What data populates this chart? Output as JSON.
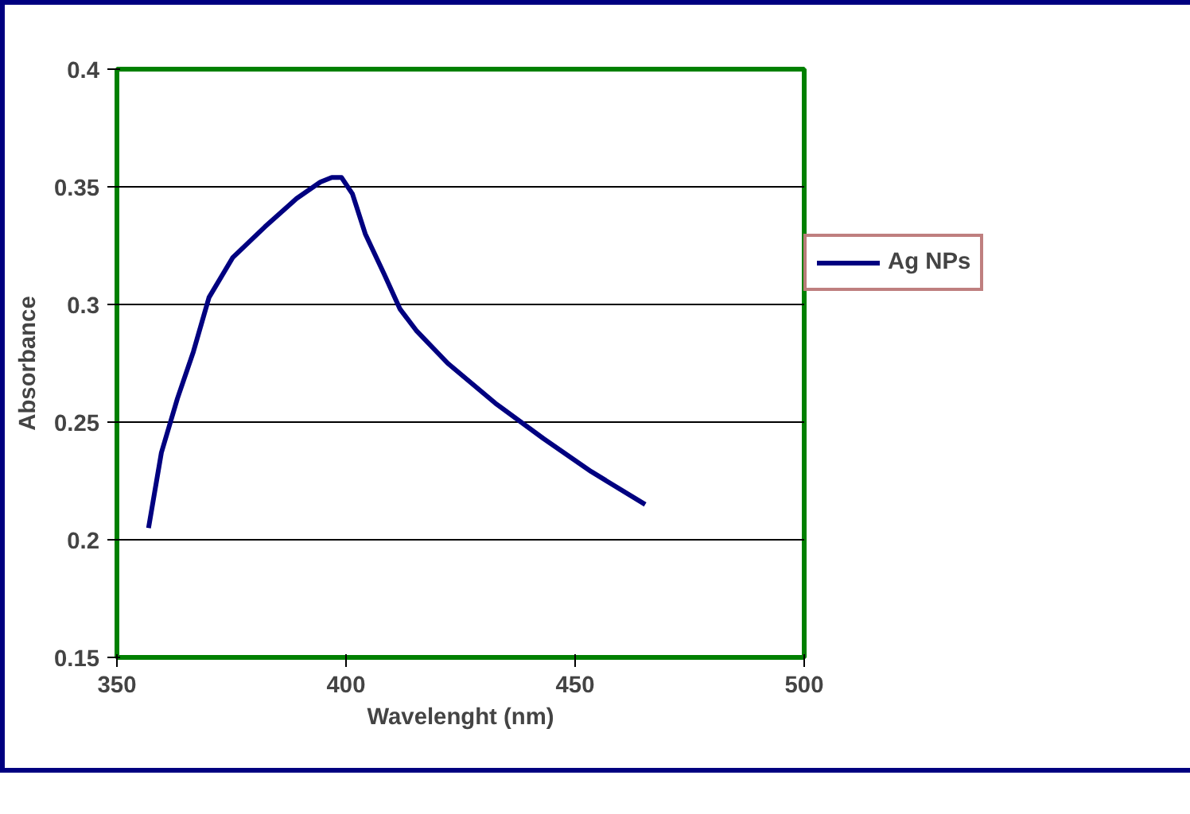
{
  "chart_data": {
    "type": "line",
    "xlabel": "Wavelenght (nm)",
    "ylabel": "Absorbance",
    "xlim": [
      350,
      500
    ],
    "xticks": [
      350,
      400,
      450,
      500
    ],
    "ylim": [
      0.15,
      0.4
    ],
    "yticks": [
      0.15,
      0.2,
      0.25,
      0.3,
      0.35,
      0.4
    ],
    "grid": "y",
    "legend": "right",
    "marker": "none",
    "line_style": "solid",
    "series": [
      {
        "name": "Ag NPs",
        "color": "#000080",
        "x": [
          356.9,
          359.7,
          363.2,
          366.7,
          370.1,
          375.3,
          382.3,
          389.2,
          394.4,
          396.9,
          399,
          401.4,
          404.2,
          408.3,
          411.8,
          415.3,
          422.2,
          432.6,
          443.1,
          453.5,
          465.3
        ],
        "values": [
          0.205,
          0.237,
          0.26,
          0.28,
          0.303,
          0.32,
          0.333,
          0.345,
          0.352,
          0.354,
          0.354,
          0.347,
          0.33,
          0.313,
          0.298,
          0.289,
          0.275,
          0.258,
          0.243,
          0.229,
          0.215
        ]
      }
    ]
  }
}
